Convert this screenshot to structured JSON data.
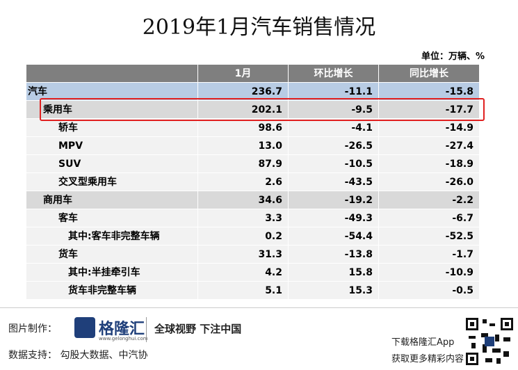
{
  "header": {
    "title": "2019年1月汽车销售情况",
    "unit": "单位：万辆、%"
  },
  "table": {
    "columns": [
      "",
      "1月",
      "环比增长",
      "同比增长"
    ],
    "rows": [
      {
        "level": 0,
        "shade": "blue",
        "cells": [
          "汽车",
          "236.7",
          "-11.1",
          "-15.8"
        ]
      },
      {
        "level": 1,
        "shade": "gray",
        "highlight": true,
        "cells": [
          "乘用车",
          "202.1",
          "-9.5",
          "-17.7"
        ]
      },
      {
        "level": 2,
        "shade": "none",
        "cells": [
          "轿车",
          "98.6",
          "-4.1",
          "-14.9"
        ]
      },
      {
        "level": 2,
        "shade": "none",
        "cells": [
          "MPV",
          "13.0",
          "-26.5",
          "-27.4"
        ]
      },
      {
        "level": 2,
        "shade": "none",
        "cells": [
          "SUV",
          "87.9",
          "-10.5",
          "-18.9"
        ]
      },
      {
        "level": 2,
        "shade": "none",
        "cells": [
          "交叉型乘用车",
          "2.6",
          "-43.5",
          "-26.0"
        ]
      },
      {
        "level": 1,
        "shade": "gray",
        "cells": [
          "商用车",
          "34.6",
          "-19.2",
          "-2.2"
        ]
      },
      {
        "level": 2,
        "shade": "none",
        "cells": [
          "客车",
          "3.3",
          "-49.3",
          "-6.7"
        ]
      },
      {
        "level": 3,
        "shade": "none",
        "cells": [
          "其中:客车非完整车辆",
          "0.2",
          "-54.4",
          "-52.5"
        ]
      },
      {
        "level": 2,
        "shade": "none",
        "cells": [
          "货车",
          "31.3",
          "-13.8",
          "-1.7"
        ]
      },
      {
        "level": 3,
        "shade": "none",
        "cells": [
          "其中:半挂牵引车",
          "4.2",
          "15.8",
          "-10.9"
        ]
      },
      {
        "level": 3,
        "shade": "none",
        "cells": [
          "货车非完整车辆",
          "5.1",
          "15.3",
          "-0.5"
        ]
      }
    ]
  },
  "footer": {
    "maker_label": "图片制作：",
    "logo": "格隆汇",
    "logo_url": "www.gelonghui.com",
    "slogan": "全球视野 下注中国",
    "source": "数据支持：  勾股大数据、中汽协",
    "download": "下载格隆汇App",
    "more": "获取更多精彩内容"
  }
}
